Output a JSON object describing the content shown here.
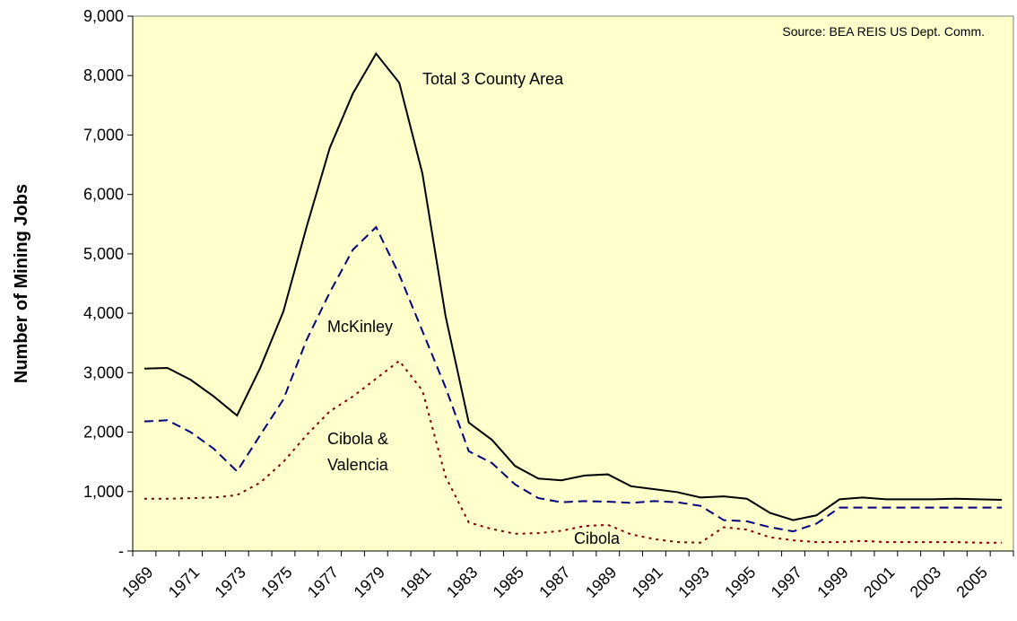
{
  "chart_data": {
    "type": "line",
    "source": "Source: BEA REIS US Dept. Comm.",
    "ylabel": "Number of Mining Jobs",
    "categories": [
      "1969",
      null,
      "1971",
      null,
      "1973",
      null,
      "1975",
      null,
      "1977",
      null,
      "1979",
      null,
      "1981",
      null,
      "1983",
      null,
      "1985",
      null,
      "1987",
      null,
      "1989",
      null,
      "1991",
      null,
      "1993",
      null,
      "1995",
      null,
      "1997",
      null,
      "1999",
      null,
      "2001",
      null,
      "2003",
      null,
      "2005",
      null
    ],
    "series": [
      {
        "name": "Total 3 County Area",
        "color": "#000000",
        "style": "solid",
        "values": [
          3070,
          3080,
          2880,
          2600,
          2280,
          3080,
          4030,
          5450,
          6780,
          7700,
          8370,
          7880,
          6350,
          3950,
          2160,
          1870,
          1430,
          1220,
          1190,
          1270,
          1290,
          1090,
          1040,
          990,
          900,
          920,
          880,
          640,
          520,
          600,
          870,
          900,
          870,
          870,
          870,
          880,
          870,
          860
        ]
      },
      {
        "name": "McKinley",
        "color": "#000080",
        "style": "dashed",
        "values": [
          2180,
          2200,
          2000,
          1720,
          1340,
          1950,
          2550,
          3550,
          4350,
          5070,
          5450,
          4650,
          3700,
          2750,
          1680,
          1480,
          1120,
          890,
          820,
          840,
          830,
          810,
          840,
          820,
          760,
          520,
          500,
          400,
          330,
          460,
          730,
          730,
          730,
          730,
          730,
          730,
          730,
          730
        ]
      },
      {
        "name": "Cibola & Valencia",
        "color": "#800000",
        "style": "dotted",
        "values": [
          880,
          880,
          890,
          900,
          940,
          1150,
          1500,
          1950,
          2350,
          2600,
          2900,
          3200,
          2700,
          1250,
          480,
          370,
          290,
          300,
          340,
          420,
          440,
          280,
          200,
          150,
          140,
          400,
          360,
          230,
          180,
          150,
          150,
          170,
          150,
          150,
          150,
          150,
          140,
          140
        ]
      }
    ],
    "annotations": [
      "Cibola"
    ],
    "ylim": [
      0,
      9000
    ],
    "yticks": [
      {
        "value": 0,
        "label": "-"
      },
      {
        "value": 1000,
        "label": "1,000"
      },
      {
        "value": 2000,
        "label": "2,000"
      },
      {
        "value": 3000,
        "label": "3,000"
      },
      {
        "value": 4000,
        "label": "4,000"
      },
      {
        "value": 5000,
        "label": "5,000"
      },
      {
        "value": 6000,
        "label": "6,000"
      },
      {
        "value": 7000,
        "label": "7,000"
      },
      {
        "value": 8000,
        "label": "8,000"
      },
      {
        "value": 9000,
        "label": "9,000"
      }
    ],
    "plot_background": "#ffffcc"
  }
}
